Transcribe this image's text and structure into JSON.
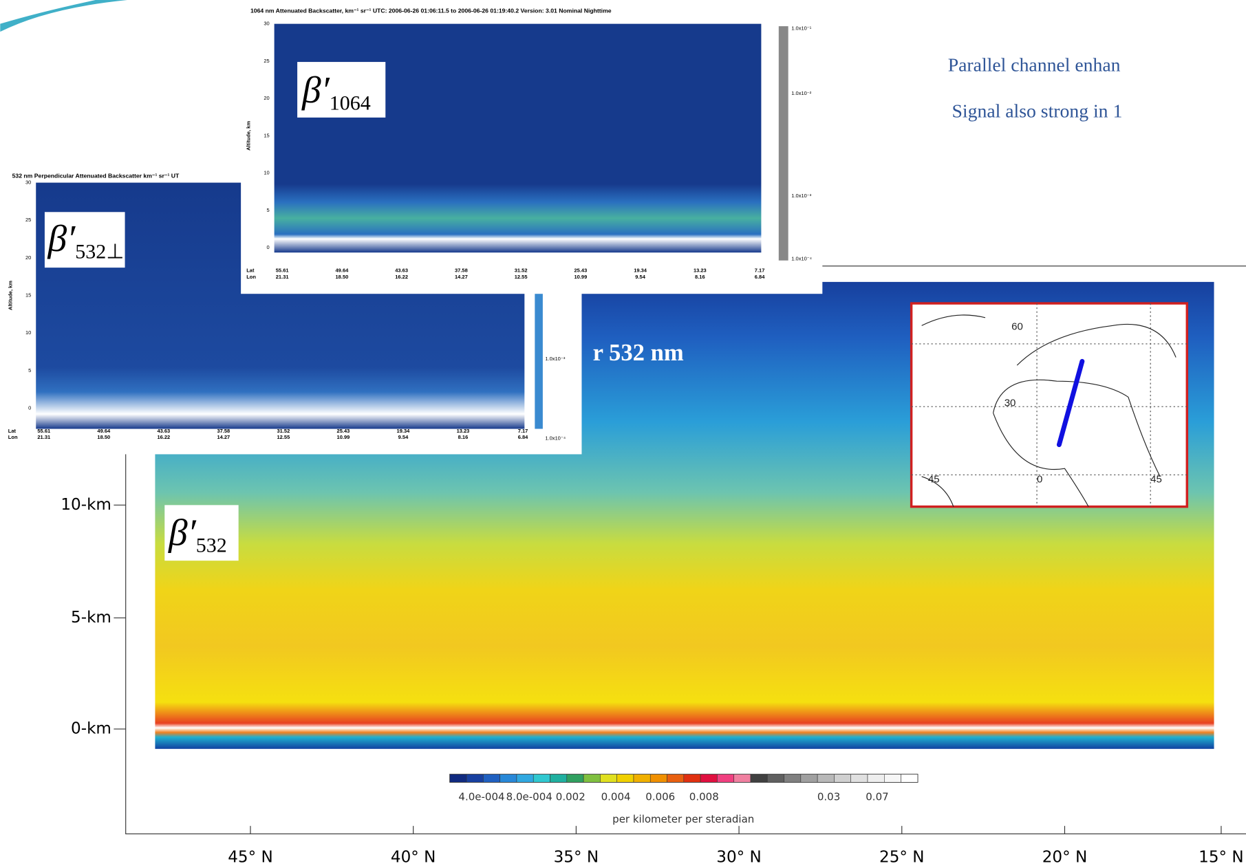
{
  "slide": {
    "lines": [
      "Parallel channel enhan",
      "Signal also strong in 1"
    ],
    "hidden_text": "r 532 nm"
  },
  "main_plot": {
    "yticks": [
      "10-km",
      "5-km",
      "0-km"
    ],
    "xticks": [
      "45° N",
      "40° N",
      "35° N",
      "30° N",
      "25° N",
      "20° N",
      "15° N"
    ],
    "symbol": "β′",
    "subscript": "532",
    "colorbar": {
      "ticks": [
        "4.0e-004",
        "8.0e-004",
        "0.002",
        "0.004",
        "0.006",
        "0.008",
        "0.03",
        "0.07"
      ],
      "unit": "per kilometer per steradian"
    }
  },
  "inset_1064": {
    "title": "1064 nm Attenuated Backscatter, km⁻¹ sr⁻¹   UTC: 2006-06-26 01:06:11.5  to  2006-06-26 01:19:40.2   Version: 3.01  Nominal  Nighttime",
    "ylabel": "Altitude, km",
    "yticks": [
      "30",
      "25",
      "20",
      "15",
      "10",
      "5",
      "0"
    ],
    "lat_label": "Lat",
    "lon_label": "Lon",
    "lat": [
      "55.61",
      "49.64",
      "43.63",
      "37.58",
      "31.52",
      "25.43",
      "19.34",
      "13.23",
      "7.17"
    ],
    "lon": [
      "21.31",
      "18.50",
      "16.22",
      "14.27",
      "12.55",
      "10.99",
      "9.54",
      "8.16",
      "6.84"
    ],
    "colorbar": [
      "1.0x10⁻¹",
      "1.0x10⁻²",
      "1.0x10⁻³",
      "1.0x10⁻⁴"
    ],
    "symbol": "β′",
    "subscript": "1064"
  },
  "inset_532_perp": {
    "title": "532 nm Perpendicular Attenuated Backscatter km⁻¹ sr⁻¹  UT",
    "ylabel": "Altitude, km",
    "yticks": [
      "30",
      "25",
      "20",
      "15",
      "10",
      "5",
      "0"
    ],
    "lat_label": "Lat",
    "lon_label": "Lon",
    "lat": [
      "55.61",
      "49.64",
      "43.63",
      "37.58",
      "31.52",
      "25.43",
      "19.34",
      "13.23",
      "7.17"
    ],
    "lon": [
      "21.31",
      "18.50",
      "16.22",
      "14.27",
      "12.55",
      "10.99",
      "9.54",
      "8.16",
      "6.84"
    ],
    "colorbar": [
      "1.0x10⁻³",
      "1.0x10⁻⁴"
    ],
    "symbol": "β′",
    "subscript": "532⊥"
  },
  "map": {
    "labels": [
      "60",
      "30",
      "45",
      "0",
      "45"
    ]
  }
}
